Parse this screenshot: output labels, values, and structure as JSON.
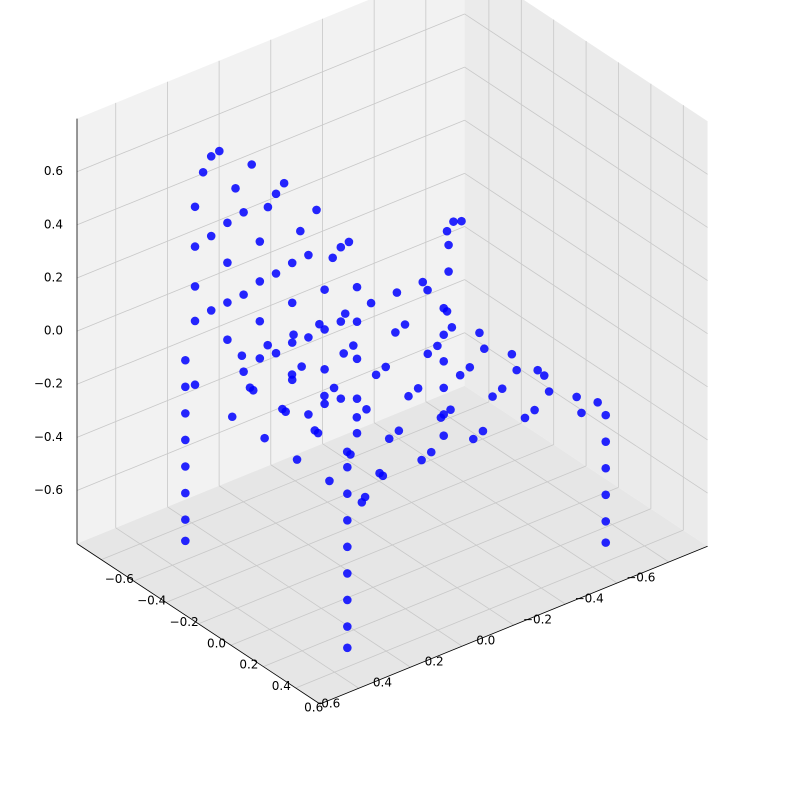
{
  "chart_data": {
    "type": "scatter",
    "projection": "3d",
    "title": "",
    "xlabel": "",
    "ylabel": "",
    "zlabel": "",
    "xlim": [
      -0.75,
      0.75
    ],
    "ylim": [
      -0.75,
      0.75
    ],
    "zlim": [
      -0.8,
      0.8
    ],
    "grid": true,
    "marker_color": "#0000ff",
    "pane_color": "#f2f2f2",
    "grid_color": "#c8c8c8",
    "x_ticks": [
      {
        "value": -0.6,
        "label": "−0.6"
      },
      {
        "value": -0.4,
        "label": "−0.4"
      },
      {
        "value": -0.2,
        "label": "−0.2"
      },
      {
        "value": 0.0,
        "label": "0.0"
      },
      {
        "value": 0.2,
        "label": "0.2"
      },
      {
        "value": 0.4,
        "label": "0.4"
      },
      {
        "value": 0.6,
        "label": "0.6"
      }
    ],
    "y_ticks": [
      {
        "value": -0.6,
        "label": "−0.6"
      },
      {
        "value": -0.4,
        "label": "−0.4"
      },
      {
        "value": -0.2,
        "label": "−0.2"
      },
      {
        "value": 0.0,
        "label": "0.0"
      },
      {
        "value": 0.2,
        "label": "0.2"
      },
      {
        "value": 0.4,
        "label": "0.4"
      },
      {
        "value": 0.6,
        "label": "0.6"
      }
    ],
    "z_ticks": [
      {
        "value": -0.6,
        "label": "−0.6"
      },
      {
        "value": -0.4,
        "label": "−0.4"
      },
      {
        "value": -0.2,
        "label": "−0.2"
      },
      {
        "value": 0.0,
        "label": "0.0"
      },
      {
        "value": 0.2,
        "label": "0.2"
      },
      {
        "value": 0.4,
        "label": "0.4"
      },
      {
        "value": 0.6,
        "label": "0.6"
      }
    ],
    "series": [
      {
        "points": [
          [
            -0.35,
            0.45,
            0.72
          ],
          [
            -0.15,
            0.45,
            0.75
          ],
          [
            0.05,
            0.45,
            0.76
          ],
          [
            0.25,
            0.45,
            0.74
          ],
          [
            0.45,
            0.45,
            0.7
          ],
          [
            -0.45,
            0.45,
            0.6
          ],
          [
            -0.25,
            0.45,
            0.62
          ],
          [
            -0.05,
            0.45,
            0.63
          ],
          [
            0.15,
            0.45,
            0.62
          ],
          [
            0.35,
            0.45,
            0.6
          ],
          [
            0.5,
            0.45,
            0.55
          ],
          [
            -0.5,
            0.45,
            0.45
          ],
          [
            -0.3,
            0.45,
            0.47
          ],
          [
            -0.1,
            0.45,
            0.48
          ],
          [
            0.1,
            0.45,
            0.48
          ],
          [
            0.3,
            0.45,
            0.46
          ],
          [
            0.5,
            0.45,
            0.42
          ],
          [
            -0.5,
            0.45,
            0.3
          ],
          [
            -0.3,
            0.45,
            0.32
          ],
          [
            -0.1,
            0.45,
            0.33
          ],
          [
            0.1,
            0.45,
            0.33
          ],
          [
            0.3,
            0.45,
            0.31
          ],
          [
            0.5,
            0.45,
            0.28
          ],
          [
            -0.5,
            0.45,
            0.15
          ],
          [
            -0.3,
            0.45,
            0.17
          ],
          [
            -0.1,
            0.45,
            0.18
          ],
          [
            0.1,
            0.45,
            0.18
          ],
          [
            0.3,
            0.45,
            0.16
          ],
          [
            0.5,
            0.45,
            0.13
          ],
          [
            -0.5,
            0.45,
            0.02
          ],
          [
            -0.3,
            0.45,
            0.03
          ],
          [
            -0.1,
            0.45,
            0.04
          ],
          [
            0.1,
            0.45,
            0.04
          ],
          [
            0.3,
            0.45,
            0.03
          ],
          [
            0.5,
            0.45,
            0.0
          ],
          [
            -0.4,
            0.45,
            0.68
          ],
          [
            0.0,
            0.45,
            0.7
          ],
          [
            0.4,
            0.45,
            0.66
          ],
          [
            -0.2,
            0.45,
            0.55
          ],
          [
            0.2,
            0.45,
            0.55
          ],
          [
            -0.4,
            0.45,
            0.38
          ],
          [
            0.0,
            0.45,
            0.4
          ],
          [
            0.4,
            0.45,
            0.38
          ],
          [
            -0.2,
            0.45,
            0.24
          ],
          [
            0.2,
            0.45,
            0.24
          ],
          [
            -0.4,
            0.45,
            0.1
          ],
          [
            0.0,
            0.45,
            0.1
          ],
          [
            0.4,
            0.45,
            0.09
          ],
          [
            -0.2,
            0.45,
            -0.05
          ],
          [
            0.2,
            0.45,
            -0.05
          ],
          [
            -0.48,
            0.5,
            -0.1
          ],
          [
            -0.48,
            0.5,
            -0.2
          ],
          [
            -0.48,
            0.5,
            -0.3
          ],
          [
            -0.48,
            0.5,
            -0.4
          ],
          [
            -0.48,
            0.5,
            -0.5
          ],
          [
            -0.48,
            0.5,
            -0.6
          ],
          [
            -0.48,
            0.5,
            -0.7
          ],
          [
            -0.48,
            0.5,
            -0.78
          ],
          [
            0.52,
            0.5,
            -0.1
          ],
          [
            0.52,
            0.5,
            -0.2
          ],
          [
            0.52,
            0.5,
            -0.3
          ],
          [
            0.52,
            0.5,
            -0.4
          ],
          [
            0.52,
            0.5,
            -0.5
          ],
          [
            0.52,
            0.5,
            -0.6
          ],
          [
            0.52,
            0.5,
            -0.7
          ],
          [
            0.52,
            0.5,
            -0.78
          ],
          [
            -0.48,
            -0.5,
            -0.3
          ],
          [
            -0.48,
            -0.5,
            -0.4
          ],
          [
            -0.48,
            -0.5,
            -0.5
          ],
          [
            -0.48,
            -0.5,
            -0.6
          ],
          [
            -0.48,
            -0.5,
            -0.7
          ],
          [
            -0.48,
            -0.5,
            -0.78
          ],
          [
            0.52,
            -0.5,
            -0.3
          ],
          [
            0.52,
            -0.5,
            -0.4
          ],
          [
            0.52,
            -0.5,
            -0.5
          ],
          [
            0.52,
            -0.5,
            -0.6
          ],
          [
            0.52,
            -0.5,
            -0.7
          ],
          [
            0.52,
            -0.5,
            -0.78
          ],
          [
            -0.45,
            -0.1,
            -0.15
          ],
          [
            -0.45,
            -0.2,
            -0.15
          ],
          [
            -0.45,
            -0.3,
            -0.15
          ],
          [
            -0.45,
            -0.4,
            -0.15
          ],
          [
            -0.45,
            -0.5,
            -0.15
          ],
          [
            -0.45,
            0.0,
            -0.15
          ],
          [
            -0.45,
            0.1,
            -0.15
          ],
          [
            -0.45,
            0.2,
            -0.15
          ],
          [
            -0.45,
            0.3,
            -0.15
          ],
          [
            -0.45,
            -0.5,
            -0.05
          ],
          [
            -0.45,
            -0.55,
            0.02
          ],
          [
            -0.42,
            -0.5,
            0.05
          ],
          [
            -0.38,
            -0.45,
            0.05
          ],
          [
            -0.3,
            -0.4,
            -0.2
          ],
          [
            -0.1,
            -0.4,
            -0.2
          ],
          [
            0.1,
            -0.4,
            -0.2
          ],
          [
            0.3,
            -0.4,
            -0.2
          ],
          [
            0.5,
            -0.4,
            -0.2
          ],
          [
            -0.3,
            -0.2,
            -0.2
          ],
          [
            -0.1,
            -0.2,
            -0.2
          ],
          [
            0.1,
            -0.2,
            -0.2
          ],
          [
            0.3,
            -0.2,
            -0.2
          ],
          [
            0.5,
            -0.2,
            -0.2
          ],
          [
            -0.3,
            0.0,
            -0.2
          ],
          [
            -0.1,
            0.0,
            -0.2
          ],
          [
            0.1,
            0.0,
            -0.2
          ],
          [
            0.3,
            0.0,
            -0.2
          ],
          [
            0.5,
            0.0,
            -0.2
          ],
          [
            -0.3,
            0.2,
            -0.2
          ],
          [
            -0.1,
            0.2,
            -0.2
          ],
          [
            0.1,
            0.2,
            -0.2
          ],
          [
            0.3,
            0.2,
            -0.2
          ],
          [
            0.5,
            0.2,
            -0.2
          ],
          [
            -0.3,
            0.35,
            -0.2
          ],
          [
            -0.1,
            0.35,
            -0.2
          ],
          [
            0.1,
            0.35,
            -0.2
          ],
          [
            0.3,
            0.35,
            -0.2
          ],
          [
            0.5,
            0.35,
            -0.2
          ],
          [
            -0.4,
            -0.3,
            -0.25
          ],
          [
            -0.2,
            -0.3,
            -0.25
          ],
          [
            0.0,
            -0.3,
            -0.25
          ],
          [
            0.2,
            -0.3,
            -0.25
          ],
          [
            0.4,
            -0.3,
            -0.25
          ],
          [
            -0.4,
            -0.1,
            -0.25
          ],
          [
            -0.2,
            -0.1,
            -0.25
          ],
          [
            0.0,
            -0.1,
            -0.25
          ],
          [
            0.2,
            -0.1,
            -0.25
          ],
          [
            0.4,
            -0.1,
            -0.25
          ],
          [
            -0.4,
            0.1,
            -0.25
          ],
          [
            -0.2,
            0.1,
            -0.25
          ],
          [
            0.0,
            0.1,
            -0.25
          ],
          [
            0.2,
            0.1,
            -0.25
          ],
          [
            0.4,
            0.1,
            -0.25
          ],
          [
            -0.4,
            0.3,
            -0.25
          ],
          [
            -0.2,
            0.3,
            -0.25
          ],
          [
            0.0,
            0.3,
            -0.25
          ],
          [
            0.2,
            0.3,
            -0.25
          ],
          [
            0.4,
            0.3,
            -0.25
          ],
          [
            -0.5,
            -0.45,
            -0.22
          ],
          [
            0.55,
            -0.45,
            -0.22
          ],
          [
            -0.5,
            0.45,
            -0.22
          ],
          [
            0.55,
            0.45,
            -0.22
          ],
          [
            -0.35,
            -0.45,
            -0.3
          ],
          [
            -0.15,
            -0.45,
            -0.3
          ],
          [
            0.05,
            -0.45,
            -0.3
          ],
          [
            0.25,
            -0.45,
            -0.3
          ],
          [
            0.45,
            -0.45,
            -0.3
          ],
          [
            -0.35,
            0.4,
            -0.3
          ],
          [
            -0.15,
            0.4,
            -0.3
          ],
          [
            0.05,
            0.4,
            -0.3
          ],
          [
            0.25,
            0.4,
            -0.3
          ],
          [
            0.45,
            0.4,
            -0.3
          ],
          [
            0.1,
            -0.5,
            -0.3
          ]
        ]
      }
    ]
  }
}
